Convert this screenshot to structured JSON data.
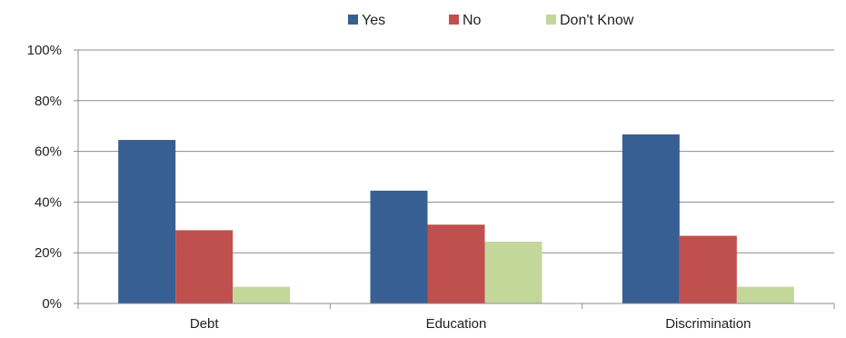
{
  "chart_data": {
    "type": "bar",
    "title": "",
    "xlabel": "",
    "ylabel": "",
    "categories": [
      "Debt",
      "Education",
      "Discrimination"
    ],
    "series": [
      {
        "name": "Yes",
        "values": [
          64.5,
          44.5,
          66.7
        ],
        "color": "#375f93"
      },
      {
        "name": "No",
        "values": [
          28.9,
          31.1,
          26.7
        ],
        "color": "#c0504d"
      },
      {
        "name": "Don't Know",
        "values": [
          6.6,
          24.4,
          6.6
        ],
        "color": "#c4d79b"
      }
    ],
    "ylim": [
      0,
      100
    ],
    "yticks": [
      0,
      20,
      40,
      60,
      80,
      100
    ],
    "ytick_labels": [
      "0%",
      "20%",
      "40%",
      "60%",
      "80%",
      "100%"
    ],
    "grid": true,
    "legend_position": "top-center"
  }
}
